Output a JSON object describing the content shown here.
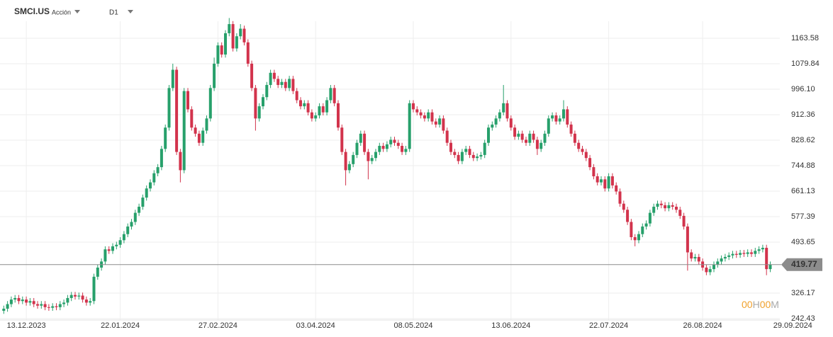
{
  "header": {
    "symbol": "SMCI.US",
    "kind": "Acción",
    "timeframe": "D1",
    "countdown": [
      "00",
      "H",
      "00",
      "M"
    ]
  },
  "chart_data": {
    "type": "candlestick",
    "up_color": "#27a06b",
    "down_color": "#d2334c",
    "xlim": [
      -1,
      220.7
    ],
    "xticks": [
      {
        "value": 6,
        "label": "13.12.2023"
      },
      {
        "value": 31,
        "label": "22.01.2024"
      },
      {
        "value": 57,
        "label": "27.02.2024"
      },
      {
        "value": 83,
        "label": "03.04.2024"
      },
      {
        "value": 109,
        "label": "08.05.2024"
      },
      {
        "value": 135,
        "label": "13.06.2024"
      },
      {
        "value": 161,
        "label": "22.07.2024"
      },
      {
        "value": 186,
        "label": "26.08.2024"
      },
      {
        "value": 210,
        "label": "29.09.2024"
      }
    ],
    "ylim": [
      237.8,
      1289.2
    ],
    "yticks": [
      242.43,
      326.17,
      493.65,
      577.39,
      661.13,
      744.88,
      828.62,
      912.36,
      {
        "value": 996.1,
        "label": "996.10"
      },
      1079.84,
      1163.58
    ],
    "grid": true,
    "open": [
      268,
      275,
      290,
      305,
      310,
      300,
      305,
      295,
      300,
      290,
      285,
      290,
      280,
      278,
      283,
      280,
      290,
      295,
      310,
      320,
      315,
      318,
      305,
      295,
      300,
      380,
      410,
      430,
      470,
      465,
      480,
      485,
      500,
      520,
      545,
      560,
      590,
      610,
      640,
      670,
      690,
      720,
      740,
      800,
      870,
      1000,
      1060,
      790,
      730,
      990,
      930,
      870,
      850,
      820,
      860,
      900,
      1000,
      1080,
      1140,
      1110,
      1180,
      1210,
      1130,
      1170,
      1195,
      1150,
      1080,
      1000,
      900,
      940,
      970,
      1010,
      1050,
      1030,
      1010,
      1020,
      1000,
      1030,
      990,
      960,
      940,
      950,
      920,
      900,
      910,
      940,
      920,
      960,
      1000,
      950,
      870,
      790,
      730,
      750,
      780,
      820,
      850,
      790,
      760,
      770,
      790,
      810,
      800,
      815,
      830,
      820,
      810,
      790,
      800,
      950,
      930,
      920,
      910,
      900,
      920,
      890,
      880,
      900,
      860,
      820,
      790,
      780,
      760,
      790,
      800,
      780,
      770,
      775,
      780,
      820,
      870,
      880,
      900,
      920,
      950,
      900,
      870,
      840,
      850,
      830,
      820,
      850,
      830,
      800,
      820,
      850,
      900,
      910,
      890,
      900,
      930,
      880,
      850,
      820,
      800,
      790,
      770,
      740,
      710,
      690,
      700,
      670,
      710,
      680,
      660,
      620,
      600,
      560,
      510,
      500,
      520,
      545,
      555,
      590,
      610,
      620,
      615,
      605,
      615,
      610,
      600,
      580,
      545,
      460,
      440,
      445,
      430,
      410,
      395,
      405,
      420,
      430,
      440,
      445,
      450,
      455,
      452,
      458,
      455,
      460,
      455,
      465,
      470,
      475,
      405
    ],
    "high": [
      285,
      300,
      315,
      320,
      320,
      315,
      315,
      310,
      310,
      300,
      300,
      300,
      290,
      293,
      293,
      300,
      305,
      320,
      330,
      330,
      328,
      328,
      315,
      310,
      390,
      420,
      440,
      480,
      480,
      490,
      495,
      510,
      530,
      555,
      570,
      600,
      620,
      650,
      680,
      700,
      730,
      750,
      810,
      880,
      1010,
      1080,
      1070,
      800,
      1000,
      1000,
      940,
      880,
      860,
      870,
      910,
      1010,
      1100,
      1150,
      1150,
      1190,
      1230,
      1220,
      1180,
      1210,
      1205,
      1160,
      1090,
      1010,
      950,
      980,
      1020,
      1060,
      1060,
      1040,
      1030,
      1030,
      1040,
      1040,
      1000,
      970,
      960,
      960,
      930,
      920,
      950,
      950,
      970,
      1010,
      1010,
      960,
      880,
      800,
      760,
      790,
      830,
      860,
      860,
      800,
      780,
      800,
      820,
      820,
      825,
      840,
      840,
      830,
      820,
      810,
      960,
      960,
      940,
      930,
      920,
      930,
      930,
      900,
      910,
      910,
      870,
      830,
      800,
      790,
      800,
      810,
      810,
      790,
      785,
      790,
      830,
      880,
      890,
      910,
      930,
      1010,
      960,
      910,
      880,
      860,
      860,
      840,
      860,
      860,
      840,
      830,
      860,
      910,
      920,
      920,
      910,
      960,
      940,
      890,
      860,
      830,
      810,
      800,
      780,
      750,
      720,
      710,
      710,
      720,
      720,
      690,
      670,
      630,
      610,
      570,
      520,
      530,
      555,
      565,
      600,
      620,
      630,
      630,
      625,
      625,
      625,
      620,
      610,
      590,
      555,
      470,
      455,
      455,
      440,
      420,
      415,
      430,
      440,
      450,
      455,
      460,
      465,
      465,
      468,
      468,
      470,
      470,
      475,
      480,
      485,
      485,
      430
    ],
    "low": [
      258,
      265,
      280,
      295,
      290,
      290,
      285,
      285,
      280,
      275,
      275,
      270,
      268,
      268,
      270,
      270,
      280,
      285,
      300,
      305,
      305,
      295,
      285,
      285,
      290,
      370,
      400,
      420,
      455,
      455,
      470,
      475,
      490,
      510,
      535,
      550,
      580,
      600,
      630,
      660,
      680,
      710,
      730,
      790,
      860,
      990,
      780,
      690,
      720,
      920,
      860,
      840,
      810,
      810,
      850,
      890,
      990,
      1070,
      1100,
      1100,
      1170,
      1120,
      1120,
      1160,
      1140,
      1070,
      990,
      860,
      890,
      930,
      960,
      1000,
      1020,
      1000,
      1000,
      990,
      990,
      980,
      950,
      930,
      930,
      910,
      890,
      890,
      900,
      910,
      910,
      950,
      940,
      860,
      780,
      680,
      720,
      740,
      770,
      810,
      780,
      700,
      750,
      760,
      780,
      790,
      790,
      805,
      810,
      800,
      780,
      780,
      790,
      920,
      910,
      900,
      890,
      890,
      880,
      870,
      870,
      850,
      810,
      780,
      770,
      750,
      750,
      780,
      770,
      760,
      760,
      765,
      770,
      810,
      860,
      870,
      890,
      910,
      890,
      860,
      830,
      830,
      820,
      810,
      810,
      820,
      780,
      790,
      810,
      840,
      890,
      880,
      880,
      890,
      870,
      840,
      810,
      790,
      780,
      760,
      730,
      700,
      680,
      680,
      660,
      660,
      670,
      650,
      610,
      590,
      550,
      500,
      480,
      490,
      510,
      535,
      545,
      580,
      600,
      605,
      595,
      595,
      600,
      590,
      570,
      535,
      400,
      430,
      430,
      420,
      400,
      385,
      385,
      395,
      410,
      420,
      430,
      435,
      440,
      442,
      442,
      445,
      445,
      445,
      445,
      455,
      460,
      385,
      395
    ],
    "close": [
      275,
      290,
      305,
      310,
      300,
      305,
      295,
      300,
      290,
      285,
      290,
      280,
      278,
      283,
      280,
      290,
      295,
      310,
      320,
      315,
      318,
      305,
      295,
      300,
      380,
      410,
      430,
      470,
      465,
      480,
      485,
      500,
      520,
      545,
      560,
      590,
      610,
      640,
      670,
      690,
      720,
      740,
      800,
      870,
      1000,
      1060,
      790,
      730,
      990,
      930,
      870,
      850,
      820,
      860,
      900,
      1000,
      1080,
      1140,
      1110,
      1180,
      1210,
      1130,
      1170,
      1195,
      1150,
      1080,
      1000,
      900,
      940,
      970,
      1010,
      1050,
      1030,
      1010,
      1020,
      1000,
      1030,
      990,
      960,
      940,
      950,
      920,
      900,
      910,
      940,
      920,
      960,
      1000,
      950,
      870,
      790,
      730,
      750,
      780,
      820,
      850,
      790,
      760,
      770,
      790,
      810,
      800,
      815,
      830,
      820,
      810,
      790,
      800,
      950,
      930,
      920,
      910,
      900,
      920,
      890,
      880,
      900,
      860,
      820,
      790,
      780,
      760,
      790,
      800,
      780,
      770,
      775,
      780,
      820,
      870,
      880,
      900,
      920,
      950,
      900,
      870,
      840,
      850,
      830,
      820,
      850,
      830,
      800,
      820,
      850,
      900,
      910,
      890,
      900,
      930,
      880,
      850,
      820,
      800,
      790,
      770,
      740,
      710,
      690,
      700,
      670,
      710,
      680,
      660,
      620,
      600,
      560,
      510,
      500,
      520,
      545,
      555,
      590,
      610,
      620,
      615,
      605,
      615,
      610,
      600,
      580,
      545,
      460,
      440,
      445,
      430,
      410,
      395,
      405,
      420,
      430,
      440,
      445,
      450,
      455,
      452,
      458,
      455,
      460,
      455,
      465,
      470,
      475,
      405,
      419.77
    ]
  }
}
